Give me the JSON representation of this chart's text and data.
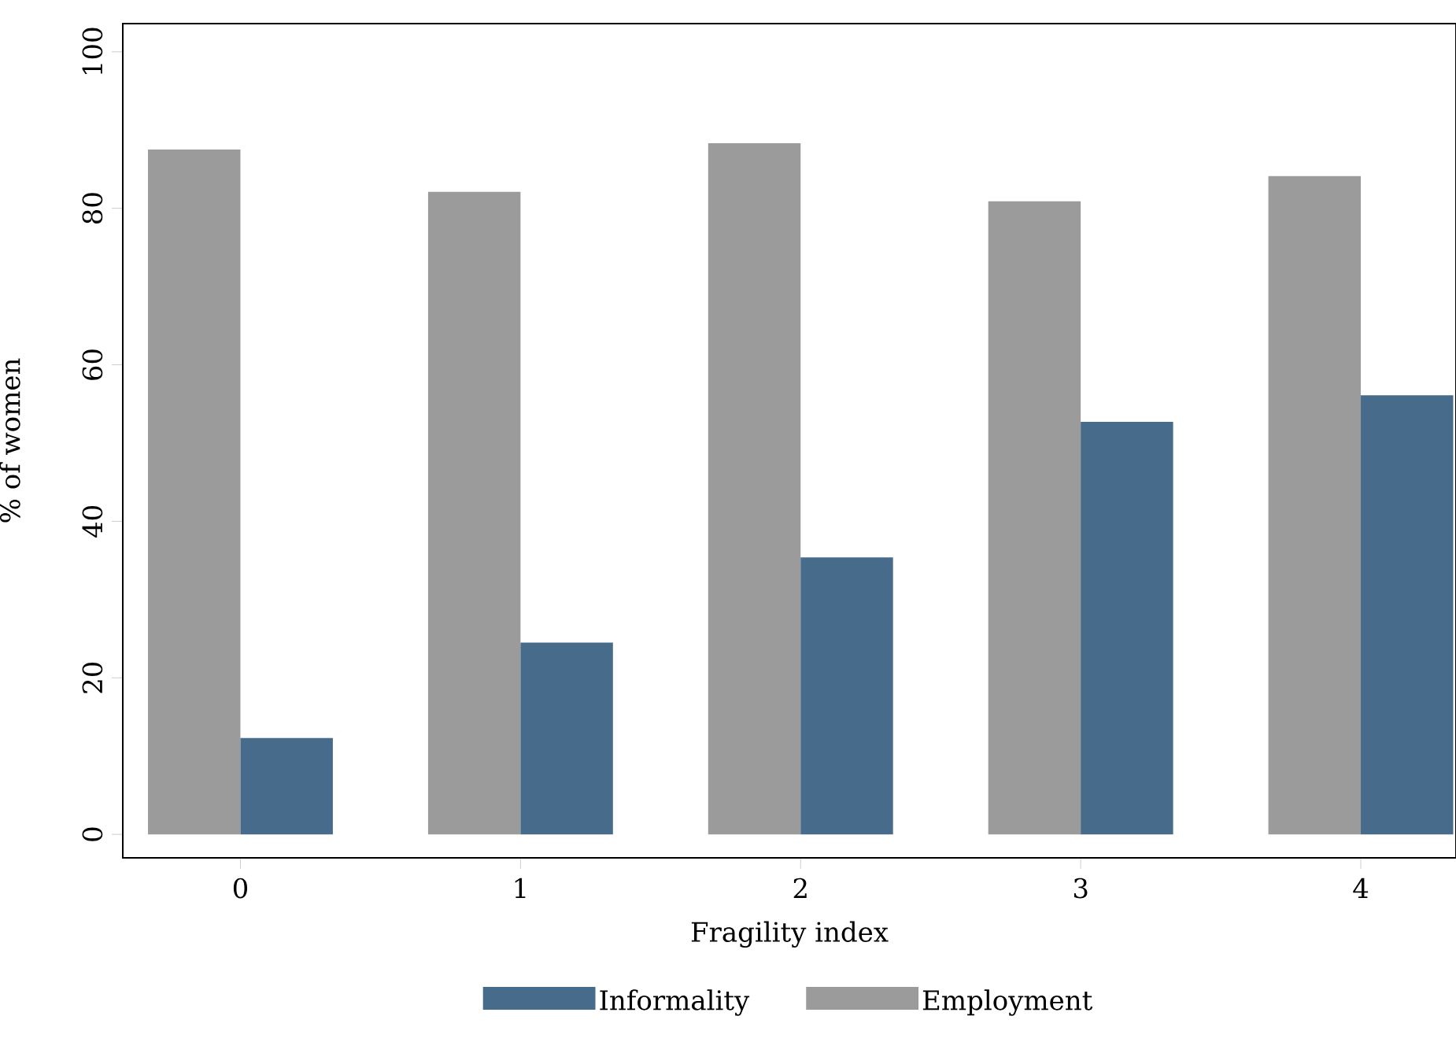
{
  "chart_data": {
    "type": "bar",
    "xlabel": "Fragility index",
    "ylabel": "% of women",
    "categories": [
      "0",
      "1",
      "2",
      "3",
      "4"
    ],
    "series": [
      {
        "name": "Employment",
        "color": "#9b9b9b",
        "values": [
          87.5,
          82.1,
          88.3,
          80.9,
          84.1
        ]
      },
      {
        "name": "Informality",
        "color": "#476b8a",
        "values": [
          12.3,
          24.5,
          35.4,
          52.7,
          56.1
        ]
      }
    ],
    "ylim": [
      -3,
      103.6
    ],
    "yticks": [
      0,
      20,
      40,
      60,
      80,
      100
    ],
    "grid": false,
    "legend": "bottom"
  }
}
